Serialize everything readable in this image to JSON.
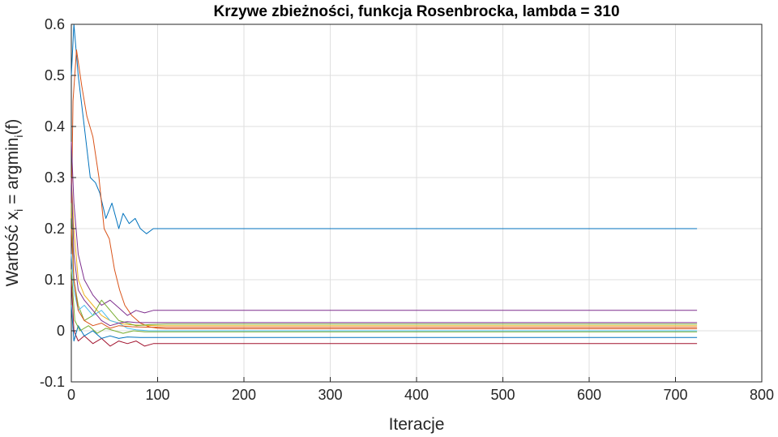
{
  "chart_data": {
    "type": "line",
    "title": "Krzywe zbieżności, funkcja Rosenbrocka, lambda = 310",
    "xlabel": "Iteracje",
    "ylabel": {
      "prefix": "Wartość x",
      "sub1": "i",
      "middle": " = argmin",
      "sub2": "i",
      "suffix": "(f)"
    },
    "xlim": [
      0,
      800
    ],
    "ylim": [
      -0.1,
      0.6
    ],
    "xticks": [
      "0",
      "100",
      "200",
      "300",
      "400",
      "500",
      "600",
      "700",
      "800"
    ],
    "yticks": [
      "-0.1",
      "0",
      "0.1",
      "0.2",
      "0.3",
      "0.4",
      "0.5",
      "0.6"
    ],
    "grid": true,
    "legend": "none",
    "series": [
      {
        "color": "#0072BD",
        "x": [
          0,
          3,
          8,
          15,
          22,
          28,
          33,
          40,
          47,
          55,
          60,
          67,
          74,
          80,
          87,
          95,
          105,
          115,
          725
        ],
        "y": [
          0.5,
          0.6,
          0.5,
          0.4,
          0.3,
          0.29,
          0.27,
          0.22,
          0.25,
          0.2,
          0.23,
          0.21,
          0.22,
          0.2,
          0.19,
          0.2,
          0.2,
          0.2,
          0.2
        ]
      },
      {
        "color": "#D95319",
        "x": [
          0,
          2,
          6,
          12,
          18,
          25,
          32,
          38,
          44,
          50,
          56,
          62,
          70,
          80,
          90,
          100,
          110,
          725
        ],
        "y": [
          0.22,
          0.45,
          0.55,
          0.48,
          0.42,
          0.38,
          0.3,
          0.2,
          0.18,
          0.12,
          0.08,
          0.05,
          0.03,
          0.015,
          0.008,
          0.005,
          0.004,
          0.004
        ]
      },
      {
        "color": "#EDB120",
        "x": [
          0,
          3,
          8,
          15,
          25,
          35,
          45,
          55,
          65,
          80,
          100,
          725
        ],
        "y": [
          0.3,
          0.2,
          0.1,
          0.07,
          0.05,
          0.03,
          0.02,
          0.015,
          0.012,
          0.011,
          0.01,
          0.01
        ]
      },
      {
        "color": "#7E2F8E",
        "x": [
          0,
          3,
          8,
          15,
          25,
          35,
          45,
          55,
          65,
          75,
          85,
          95,
          110,
          725
        ],
        "y": [
          0.37,
          0.25,
          0.15,
          0.1,
          0.07,
          0.05,
          0.06,
          0.045,
          0.03,
          0.04,
          0.035,
          0.04,
          0.04,
          0.04
        ]
      },
      {
        "color": "#77AC30",
        "x": [
          0,
          3,
          8,
          15,
          25,
          35,
          45,
          55,
          65,
          75,
          90,
          110,
          725
        ],
        "y": [
          0.25,
          0.1,
          0.05,
          0.02,
          0.03,
          0.06,
          0.04,
          0.02,
          0.015,
          0.01,
          0.012,
          0.013,
          0.013
        ]
      },
      {
        "color": "#4DBEEE",
        "x": [
          0,
          3,
          8,
          15,
          25,
          35,
          45,
          55,
          65,
          75,
          90,
          110,
          725
        ],
        "y": [
          0.15,
          0.08,
          0.04,
          0.05,
          0.03,
          0.04,
          0.02,
          0.015,
          0.005,
          0.002,
          0.0,
          0.0,
          0.0
        ]
      },
      {
        "color": "#A2142F",
        "x": [
          0,
          3,
          8,
          15,
          25,
          35,
          45,
          55,
          65,
          75,
          85,
          95,
          110,
          725
        ],
        "y": [
          0.1,
          0.0,
          -0.02,
          -0.01,
          -0.025,
          -0.015,
          -0.03,
          -0.02,
          -0.025,
          -0.02,
          -0.03,
          -0.025,
          -0.025,
          -0.025
        ]
      },
      {
        "color": "#0072BD",
        "x": [
          0,
          3,
          8,
          15,
          25,
          35,
          45,
          55,
          65,
          80,
          100,
          725
        ],
        "y": [
          0.05,
          -0.02,
          0.01,
          -0.01,
          0.0,
          -0.015,
          -0.01,
          -0.015,
          -0.012,
          -0.013,
          -0.013,
          -0.013
        ]
      },
      {
        "color": "#D95319",
        "x": [
          0,
          3,
          8,
          15,
          25,
          35,
          45,
          55,
          70,
          90,
          110,
          725
        ],
        "y": [
          0.2,
          0.1,
          0.04,
          0.02,
          0.01,
          0.015,
          0.005,
          0.01,
          0.008,
          0.007,
          0.007,
          0.007
        ]
      },
      {
        "color": "#7E2F8E",
        "x": [
          0,
          3,
          8,
          15,
          25,
          35,
          45,
          55,
          65,
          75,
          90,
          110,
          725
        ],
        "y": [
          0.3,
          0.15,
          0.08,
          0.06,
          0.04,
          0.02,
          0.01,
          0.015,
          0.018,
          0.016,
          0.016,
          0.016,
          0.016
        ]
      },
      {
        "color": "#77AC30",
        "x": [
          0,
          4,
          10,
          20,
          30,
          40,
          50,
          60,
          72,
          85,
          100,
          725
        ],
        "y": [
          0.12,
          0.02,
          0.0,
          0.01,
          -0.005,
          0.005,
          0.0,
          -0.005,
          0.0,
          -0.002,
          -0.002,
          -0.002
        ]
      }
    ]
  }
}
